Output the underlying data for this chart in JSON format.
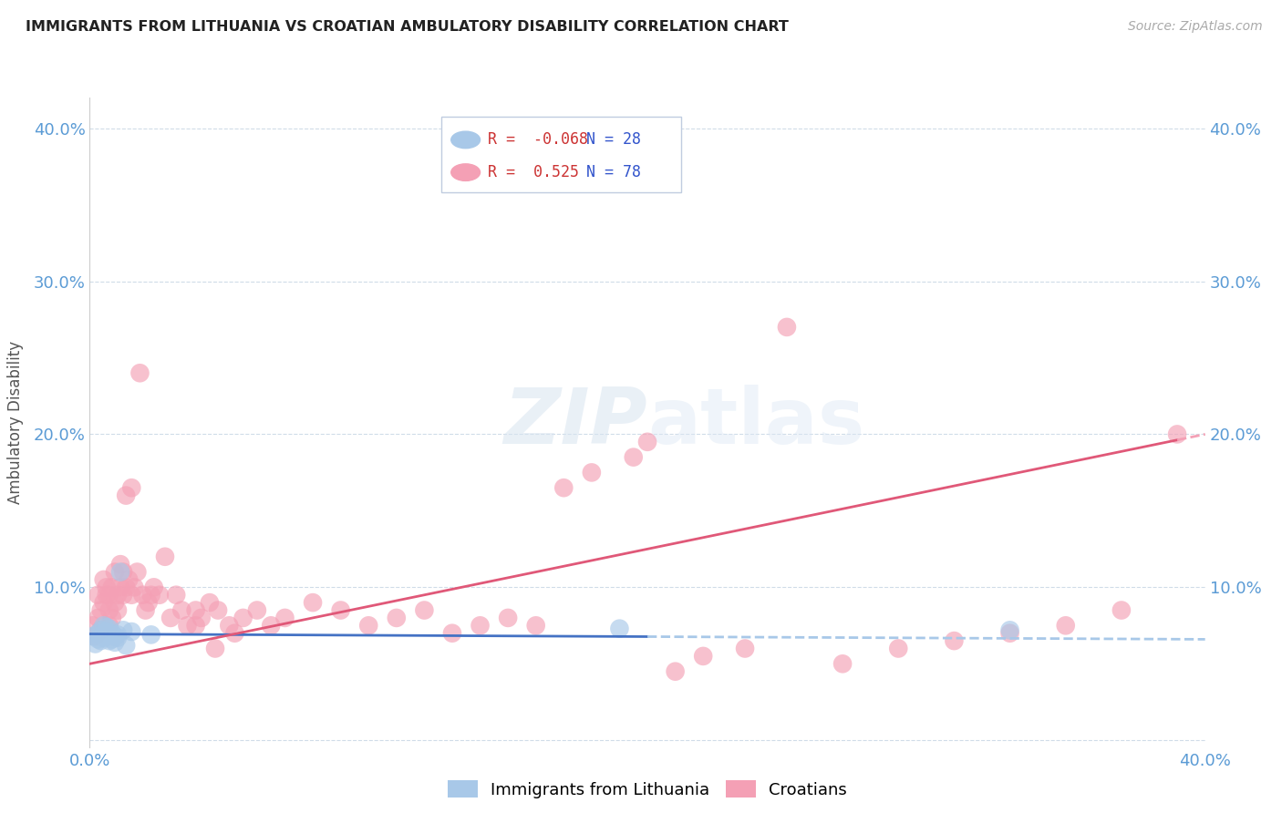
{
  "title": "IMMIGRANTS FROM LITHUANIA VS CROATIAN AMBULATORY DISABILITY CORRELATION CHART",
  "source": "Source: ZipAtlas.com",
  "ylabel": "Ambulatory Disability",
  "watermark_zip": "ZIP",
  "watermark_atlas": "atlas",
  "xlim": [
    0.0,
    0.4
  ],
  "ylim": [
    -0.005,
    0.42
  ],
  "yticks": [
    0.0,
    0.1,
    0.2,
    0.3,
    0.4
  ],
  "ytick_labels_left": [
    "",
    "10.0%",
    "20.0%",
    "30.0%",
    "40.0%"
  ],
  "ytick_labels_right": [
    "",
    "10.0%",
    "20.0%",
    "30.0%",
    "40.0%"
  ],
  "xticks": [
    0.0,
    0.4
  ],
  "xtick_labels": [
    "0.0%",
    "40.0%"
  ],
  "blue_R": -0.068,
  "blue_N": 28,
  "pink_R": 0.525,
  "pink_N": 78,
  "blue_color": "#a8c8e8",
  "pink_color": "#f4a0b5",
  "blue_line_color": "#4472c4",
  "pink_line_color": "#e05878",
  "axis_color": "#5b9bd5",
  "grid_color": "#d0dce8",
  "legend_border_color": "#c0cce0",
  "blue_scatter_x": [
    0.001,
    0.002,
    0.003,
    0.003,
    0.004,
    0.004,
    0.005,
    0.005,
    0.005,
    0.006,
    0.006,
    0.006,
    0.007,
    0.007,
    0.007,
    0.008,
    0.008,
    0.009,
    0.009,
    0.01,
    0.01,
    0.011,
    0.012,
    0.013,
    0.015,
    0.022,
    0.19,
    0.33
  ],
  "blue_scatter_y": [
    0.068,
    0.063,
    0.066,
    0.07,
    0.065,
    0.072,
    0.067,
    0.07,
    0.075,
    0.068,
    0.071,
    0.074,
    0.065,
    0.069,
    0.073,
    0.066,
    0.07,
    0.064,
    0.068,
    0.067,
    0.069,
    0.11,
    0.072,
    0.062,
    0.071,
    0.069,
    0.073,
    0.072
  ],
  "pink_scatter_x": [
    0.001,
    0.002,
    0.003,
    0.003,
    0.004,
    0.004,
    0.005,
    0.005,
    0.006,
    0.006,
    0.007,
    0.007,
    0.007,
    0.008,
    0.008,
    0.009,
    0.009,
    0.01,
    0.01,
    0.011,
    0.011,
    0.012,
    0.012,
    0.013,
    0.013,
    0.014,
    0.015,
    0.015,
    0.016,
    0.017,
    0.018,
    0.019,
    0.02,
    0.021,
    0.022,
    0.023,
    0.025,
    0.027,
    0.029,
    0.031,
    0.033,
    0.035,
    0.038,
    0.04,
    0.043,
    0.046,
    0.05,
    0.055,
    0.06,
    0.065,
    0.07,
    0.08,
    0.09,
    0.1,
    0.11,
    0.12,
    0.13,
    0.14,
    0.15,
    0.16,
    0.17,
    0.18,
    0.195,
    0.21,
    0.22,
    0.235,
    0.25,
    0.27,
    0.29,
    0.31,
    0.33,
    0.35,
    0.37,
    0.038,
    0.045,
    0.052,
    0.2,
    0.39
  ],
  "pink_scatter_y": [
    0.075,
    0.068,
    0.08,
    0.095,
    0.072,
    0.085,
    0.09,
    0.105,
    0.095,
    0.1,
    0.075,
    0.085,
    0.095,
    0.08,
    0.1,
    0.09,
    0.11,
    0.085,
    0.095,
    0.1,
    0.115,
    0.095,
    0.11,
    0.16,
    0.1,
    0.105,
    0.095,
    0.165,
    0.1,
    0.11,
    0.24,
    0.095,
    0.085,
    0.09,
    0.095,
    0.1,
    0.095,
    0.12,
    0.08,
    0.095,
    0.085,
    0.075,
    0.085,
    0.08,
    0.09,
    0.085,
    0.075,
    0.08,
    0.085,
    0.075,
    0.08,
    0.09,
    0.085,
    0.075,
    0.08,
    0.085,
    0.07,
    0.075,
    0.08,
    0.075,
    0.165,
    0.175,
    0.185,
    0.045,
    0.055,
    0.06,
    0.27,
    0.05,
    0.06,
    0.065,
    0.07,
    0.075,
    0.085,
    0.075,
    0.06,
    0.07,
    0.195,
    0.2
  ],
  "blue_line_x0": 0.0,
  "blue_line_x1": 0.4,
  "blue_line_y0": 0.0695,
  "blue_line_y1": 0.066,
  "pink_line_x0": 0.0,
  "pink_line_x1": 0.4,
  "pink_line_y0": 0.05,
  "pink_line_y1": 0.2
}
